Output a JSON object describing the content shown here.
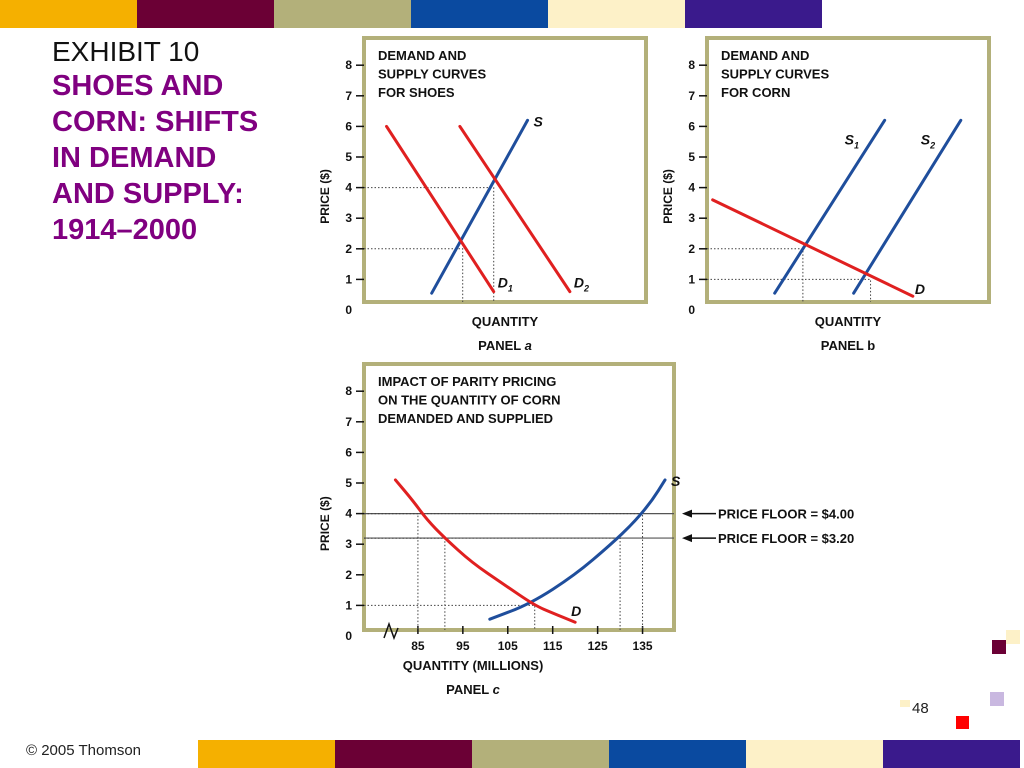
{
  "slide": {
    "exhibit": "EXHIBIT 10",
    "title_lines": [
      "SHOES AND",
      "CORN: SHIFTS",
      "IN DEMAND",
      "AND SUPPLY:",
      "1914–2000"
    ],
    "copyright": "© 2005 Thomson",
    "page_number": "48",
    "stripe_colors": [
      "#f5b000",
      "#6b0035",
      "#b3b07a",
      "#0a4aa0",
      "#fdf1c8",
      "#3a1a8c"
    ]
  },
  "chart_data": [
    {
      "type": "line",
      "panel_label": "PANEL",
      "panel_letter": "a",
      "title_lines": [
        "DEMAND AND",
        "SUPPLY CURVES",
        "FOR SHOES"
      ],
      "xlabel": "QUANTITY",
      "ylabel": "PRICE ($)",
      "yticks": [
        "0",
        "1",
        "2",
        "3",
        "4",
        "5",
        "6",
        "7",
        "8"
      ],
      "ylim": [
        0,
        8.5
      ],
      "xlim": [
        0,
        10
      ],
      "series": [
        {
          "name": "S",
          "color": "#1f4e9c",
          "points": [
            [
              2.4,
              0.55
            ],
            [
              5.8,
              6.2
            ]
          ]
        },
        {
          "name": "D",
          "subscript": "1",
          "color": "#e02020",
          "points": [
            [
              0.8,
              6.0
            ],
            [
              4.6,
              0.6
            ]
          ]
        },
        {
          "name": "D",
          "subscript": "2",
          "color": "#e02020",
          "points": [
            [
              3.4,
              6.0
            ],
            [
              7.3,
              0.6
            ]
          ]
        }
      ],
      "guides": [
        [
          3.5,
          2
        ],
        [
          4.6,
          4
        ]
      ]
    },
    {
      "type": "line",
      "panel_label": "PANEL",
      "panel_letter": "b",
      "title_lines": [
        "DEMAND AND",
        "SUPPLY CURVES",
        "FOR CORN"
      ],
      "xlabel": "QUANTITY",
      "ylabel": "PRICE ($)",
      "yticks": [
        "0",
        "1",
        "2",
        "3",
        "4",
        "5",
        "6",
        "7",
        "8"
      ],
      "ylim": [
        0,
        8.5
      ],
      "xlim": [
        0,
        10
      ],
      "series": [
        {
          "name": "S",
          "subscript": "1",
          "color": "#1f4e9c",
          "points": [
            [
              2.4,
              0.55
            ],
            [
              6.3,
              6.2
            ]
          ]
        },
        {
          "name": "S",
          "subscript": "2",
          "color": "#1f4e9c",
          "points": [
            [
              5.2,
              0.55
            ],
            [
              9.0,
              6.2
            ]
          ]
        },
        {
          "name": "D",
          "color": "#e02020",
          "points": [
            [
              0.2,
              3.6
            ],
            [
              7.3,
              0.45
            ]
          ]
        }
      ],
      "guides": [
        [
          3.4,
          2
        ],
        [
          5.8,
          1
        ]
      ]
    },
    {
      "type": "line",
      "panel_label": "PANEL",
      "panel_letter": "c",
      "title_lines": [
        "IMPACT OF PARITY PRICING",
        "ON THE QUANTITY OF CORN",
        "DEMANDED AND SUPPLIED"
      ],
      "xlabel": "QUANTITY (MILLIONS)",
      "ylabel": "PRICE ($)",
      "yticks": [
        "0",
        "1",
        "2",
        "3",
        "4",
        "5",
        "6",
        "7",
        "8"
      ],
      "xticks": [
        85,
        95,
        105,
        115,
        125,
        135
      ],
      "ylim": [
        0,
        8.5
      ],
      "xlim": [
        73,
        142
      ],
      "series": [
        {
          "name": "S",
          "color": "#1f4e9c",
          "points": [
            [
              101,
              0.55
            ],
            [
              110,
              1.05
            ],
            [
              120,
              2.0
            ],
            [
              128,
              3.0
            ],
            [
              133,
              3.7
            ],
            [
              137,
              4.4
            ],
            [
              140,
              5.1
            ]
          ]
        },
        {
          "name": "D",
          "color": "#e02020",
          "points": [
            [
              80,
              5.1
            ],
            [
              84,
              4.4
            ],
            [
              87,
              3.8
            ],
            [
              91,
              3.2
            ],
            [
              97,
              2.4
            ],
            [
              104,
              1.7
            ],
            [
              111,
              1.0
            ],
            [
              115,
              0.75
            ],
            [
              120,
              0.45
            ]
          ]
        }
      ],
      "price_floors": [
        {
          "value": 4.0,
          "label": "PRICE FLOOR = $4.00"
        },
        {
          "value": 3.2,
          "label": "PRICE FLOOR = $3.20"
        }
      ],
      "guides": [
        [
          85,
          4.0
        ],
        [
          91,
          3.2
        ],
        [
          111,
          1.0
        ],
        [
          130,
          3.2
        ],
        [
          135,
          4.0
        ]
      ]
    }
  ]
}
